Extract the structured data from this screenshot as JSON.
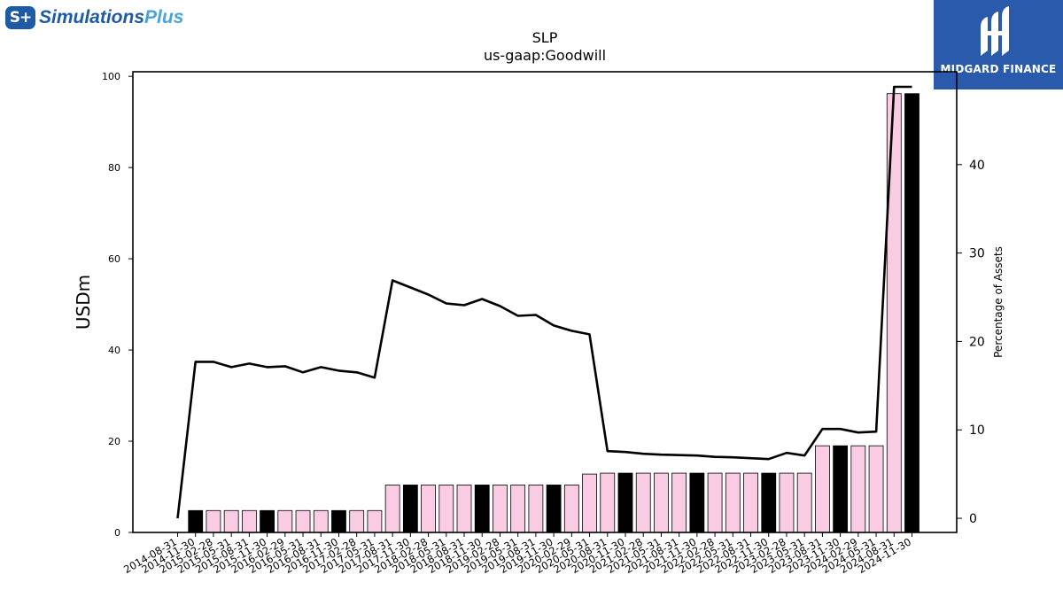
{
  "brand": {
    "left_logo_badge": "S+",
    "left_logo_text_main": "Simulations",
    "left_logo_text_accent": "Plus",
    "right_logo_text": "MIDGARD FINANCE",
    "right_logo_icon": "midgard-monogram-icon"
  },
  "colors": {
    "bar_fill": "#f9cce3",
    "bar_highlight_fill": "#000000",
    "line": "#000000",
    "brand_blue": "#1f5aa6",
    "midgard_blue": "#2a5aac"
  },
  "chart_data": {
    "type": "bar",
    "title": "SLP",
    "subtitle": "us-gaap:Goodwill",
    "ylabel": "USDm",
    "y2label": "Percentage of Assets",
    "ylim": [
      0,
      101
    ],
    "y2lim": [
      -1.6,
      50.5
    ],
    "yticks": [
      0,
      20,
      40,
      60,
      80,
      100
    ],
    "y2ticks": [
      0,
      10,
      20,
      30,
      40
    ],
    "categories": [
      "2014-08-31",
      "2014-11-30",
      "2015-02-28",
      "2015-05-31",
      "2015-08-31",
      "2015-11-30",
      "2016-02-29",
      "2016-05-31",
      "2016-08-31",
      "2016-11-30",
      "2017-02-28",
      "2017-05-31",
      "2017-08-31",
      "2017-11-30",
      "2018-02-28",
      "2018-05-31",
      "2018-08-31",
      "2018-11-30",
      "2019-02-28",
      "2019-05-31",
      "2019-08-31",
      "2019-11-30",
      "2020-02-29",
      "2020-05-31",
      "2020-08-31",
      "2020-11-30",
      "2021-02-28",
      "2021-05-31",
      "2021-08-31",
      "2021-11-30",
      "2022-02-28",
      "2022-05-31",
      "2022-08-31",
      "2022-11-30",
      "2023-02-28",
      "2023-05-31",
      "2023-08-31",
      "2023-11-30",
      "2024-02-29",
      "2024-05-31",
      "2024-08-31",
      "2024-11-30"
    ],
    "series": [
      {
        "type": "bar",
        "values": [
          0,
          4.8,
          4.8,
          4.8,
          4.8,
          4.8,
          4.8,
          4.8,
          4.8,
          4.8,
          4.8,
          4.8,
          10.4,
          10.4,
          10.4,
          10.4,
          10.4,
          10.4,
          10.4,
          10.4,
          10.4,
          10.4,
          10.4,
          12.8,
          13.0,
          13.0,
          13.0,
          13.0,
          13.0,
          13.0,
          13.0,
          13.0,
          13.0,
          13.0,
          13.0,
          13.0,
          19.0,
          19.0,
          19.0,
          19.0,
          96.2,
          96.2
        ],
        "highlight": [
          false,
          true,
          false,
          false,
          false,
          true,
          false,
          false,
          false,
          true,
          false,
          false,
          false,
          true,
          false,
          false,
          false,
          true,
          false,
          false,
          false,
          true,
          false,
          false,
          false,
          true,
          false,
          false,
          false,
          true,
          false,
          false,
          false,
          true,
          false,
          false,
          false,
          true,
          false,
          false,
          false,
          true
        ]
      },
      {
        "type": "line",
        "axis": "right",
        "values": [
          0,
          17.7,
          17.7,
          17.1,
          17.5,
          17.1,
          17.2,
          16.5,
          17.1,
          16.7,
          16.5,
          15.9,
          26.9,
          26.1,
          25.3,
          24.3,
          24.1,
          24.8,
          24.0,
          22.9,
          23.0,
          21.8,
          21.2,
          20.8,
          7.6,
          7.5,
          7.3,
          7.2,
          7.15,
          7.1,
          6.95,
          6.9,
          6.8,
          6.7,
          7.4,
          7.1,
          10.1,
          10.1,
          9.7,
          9.8,
          48.8,
          48.8
        ]
      }
    ],
    "grid": false
  }
}
